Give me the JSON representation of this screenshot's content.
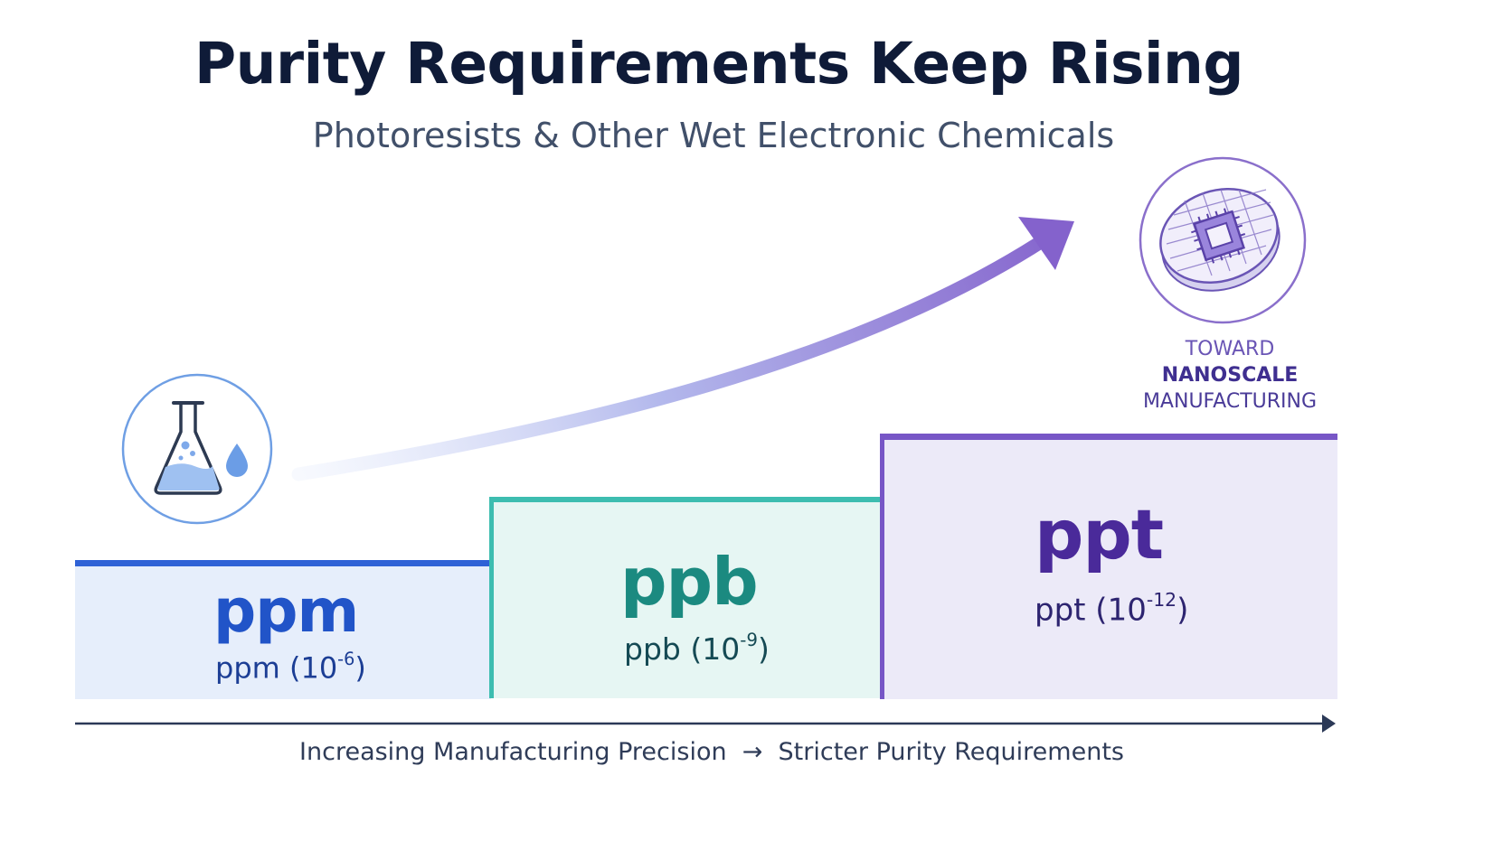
{
  "title": "Purity Requirements Keep Rising",
  "subtitle": "Photoresists & Other Wet Electronic Chemicals",
  "steps": [
    {
      "unit": "ppm",
      "label": "ppm (10",
      "exponent": "-6",
      "close": ")",
      "color": "#2f62d6"
    },
    {
      "unit": "ppb",
      "label": "ppb (10",
      "exponent": "-9",
      "close": ")",
      "color": "#3dbdb0"
    },
    {
      "unit": "ppt",
      "label": "ppt (10",
      "exponent": "-12",
      "close": ")",
      "color": "#7756c6"
    }
  ],
  "toward": {
    "line1": "TOWARD",
    "line2": "NANOSCALE",
    "line3": "MANUFACTURING"
  },
  "footer": "Increasing Manufacturing Precision  →  Stricter Purity Requirements",
  "icons": {
    "left": "flask-with-droplet-icon",
    "right": "silicon-wafer-chip-icon"
  }
}
